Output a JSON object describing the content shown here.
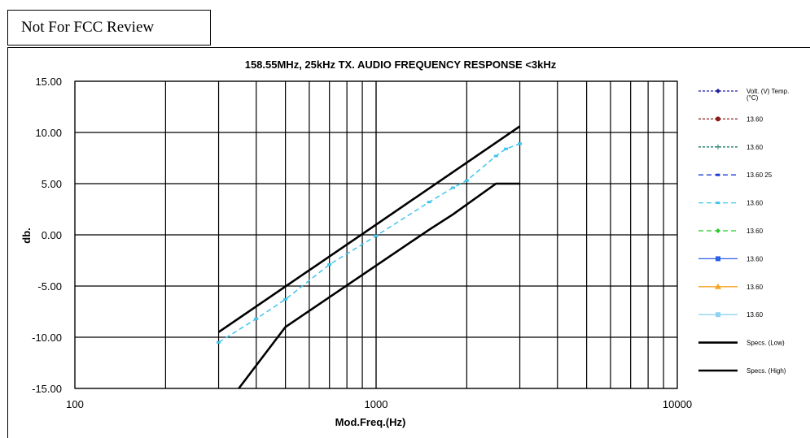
{
  "stamp": {
    "text": "Not For FCC Review"
  },
  "chart_data": {
    "type": "line",
    "title": "158.55MHz, 25kHz TX. AUDIO FREQUENCY RESPONSE <3kHz",
    "xlabel": "Mod.Freq.(Hz)",
    "ylabel": "db.",
    "x_scale": "log",
    "xlim": [
      100,
      10000
    ],
    "ylim": [
      -15,
      15
    ],
    "grid": true,
    "legend_position": "right",
    "x_ticks": [
      "100",
      "1000",
      "10000"
    ],
    "y_ticks": [
      "15.00",
      "10.00",
      "5.00",
      "0.00",
      "-5.00",
      "-10.00",
      "-15.00"
    ],
    "series": [
      {
        "name": "Volt. (V) Temp. (°C)",
        "color": "#1f1f9f",
        "dash": "3,2",
        "marker": "diamond",
        "values": []
      },
      {
        "name": "13.60",
        "color": "#8b1a1a",
        "dash": "3,2",
        "marker": "circle",
        "values": []
      },
      {
        "name": "13.60",
        "color": "#1a7a6a",
        "dash": "3,2",
        "marker": "plus",
        "values": []
      },
      {
        "name": "13.60 25",
        "color": "#1a35d6",
        "dash": "6,4",
        "marker": "dash",
        "values": []
      },
      {
        "name": "13.60",
        "color": "#3fc4ec",
        "dash": "6,4",
        "marker": "dash",
        "x": [
          300,
          400,
          500,
          700,
          1000,
          1500,
          1800,
          2000,
          2500,
          2700,
          3000
        ],
        "values": [
          -10.5,
          -8.2,
          -6.3,
          -2.9,
          -0.1,
          3.2,
          4.6,
          5.3,
          7.7,
          8.4,
          8.9
        ]
      },
      {
        "name": "13.60",
        "color": "#22cc22",
        "dash": "6,4",
        "marker": "diamond",
        "values": []
      },
      {
        "name": "13.60",
        "color": "#2a5fe6",
        "dash": "",
        "marker": "square",
        "values": []
      },
      {
        "name": "13.60",
        "color": "#f5a623",
        "dash": "",
        "marker": "triangle",
        "values": []
      },
      {
        "name": "13.60",
        "color": "#8fd3f0",
        "dash": "",
        "marker": "square",
        "values": []
      },
      {
        "name": "Specs. (Low)",
        "color": "#000000",
        "dash": "",
        "marker": "none",
        "x": [
          350,
          500,
          1000,
          1500,
          1800,
          2500,
          3000
        ],
        "values": [
          -15,
          -9,
          -3,
          0.5,
          2,
          5,
          5
        ]
      },
      {
        "name": "Specs. (High)",
        "color": "#000000",
        "dash": "",
        "marker": "none",
        "x": [
          300,
          1000,
          2500,
          3000
        ],
        "values": [
          -9.5,
          1,
          9,
          10.6
        ]
      }
    ]
  }
}
